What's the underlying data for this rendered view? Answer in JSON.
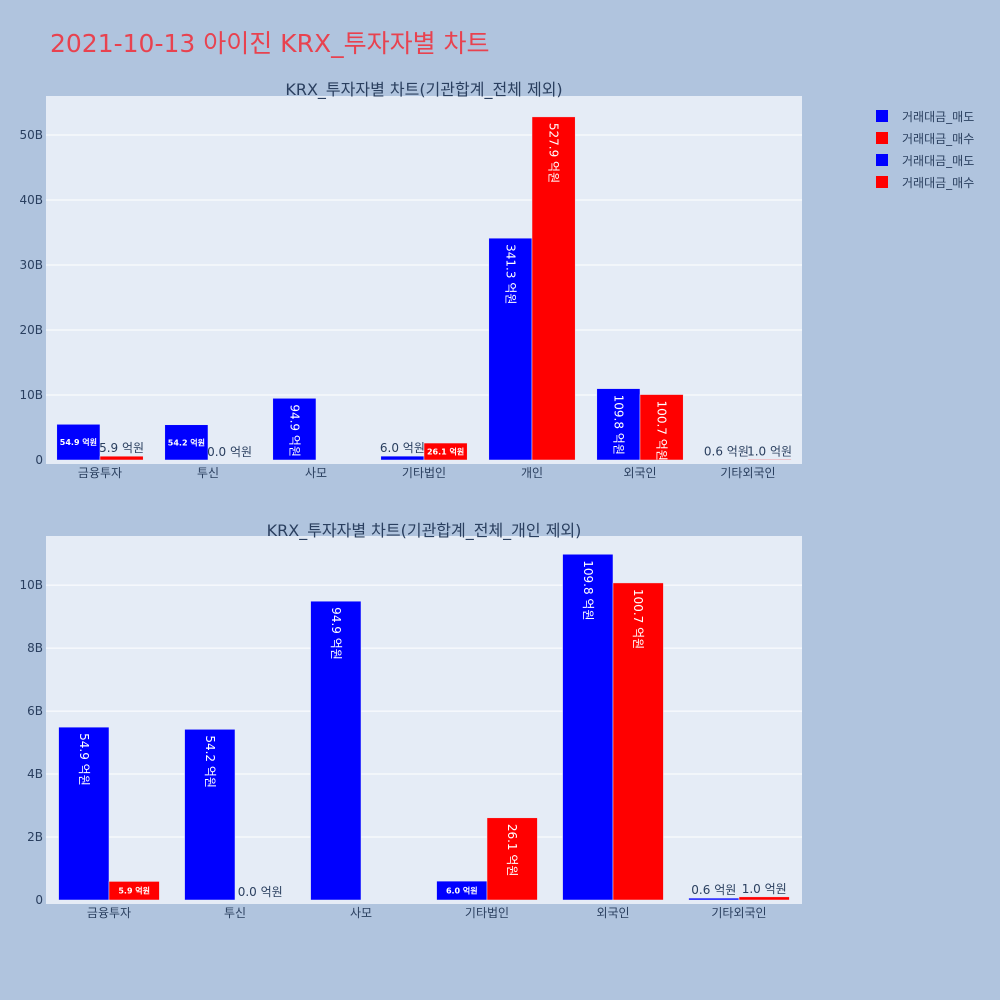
{
  "page_title": "2021-10-13 아이진 KRX_투자자별 차트",
  "legend": [
    {
      "label": "거래대금_매도",
      "color": "#0000ff"
    },
    {
      "label": "거래대금_매수",
      "color": "#ff0000"
    },
    {
      "label": "거래대금_매도",
      "color": "#0000ff"
    },
    {
      "label": "거래대금_매수",
      "color": "#ff0000"
    }
  ],
  "chart_data": [
    {
      "type": "bar",
      "title": "KRX_투자자별 차트(기관합계_전체 제외)",
      "categories": [
        "금융투자",
        "투신",
        "사모",
        "기타법인",
        "개인",
        "외국인",
        "기타외국인"
      ],
      "series": [
        {
          "name": "거래대금_매도",
          "color": "#0000ff",
          "values": [
            5.49,
            5.42,
            9.49,
            0.6,
            34.13,
            10.98,
            0.06
          ],
          "labels": [
            "54.9 억원",
            "54.2 억원",
            "94.9 억원",
            "6.0 억원",
            "341.3 억원",
            "109.8 억원",
            "0.6 억원"
          ]
        },
        {
          "name": "거래대금_매수",
          "color": "#ff0000",
          "values": [
            0.59,
            0.0,
            null,
            2.61,
            52.79,
            10.07,
            0.1
          ],
          "labels": [
            "5.9 억원",
            "0.0 억원",
            "",
            "26.1 억원",
            "527.9 억원",
            "100.7 억원",
            "1.0 억원"
          ]
        }
      ],
      "ylim": [
        0,
        56
      ],
      "yticks": [
        0,
        10,
        20,
        30,
        40,
        50
      ],
      "ytick_labels": [
        "0",
        "10B",
        "20B",
        "30B",
        "40B",
        "50B"
      ],
      "grid": true
    },
    {
      "type": "bar",
      "title": "KRX_투자자별 차트(기관합계_전체_개인 제외)",
      "categories": [
        "금융투자",
        "투신",
        "사모",
        "기타법인",
        "외국인",
        "기타외국인"
      ],
      "series": [
        {
          "name": "거래대금_매도",
          "color": "#0000ff",
          "values": [
            5.49,
            5.42,
            9.49,
            0.6,
            10.98,
            0.06
          ],
          "labels": [
            "54.9 억원",
            "54.2 억원",
            "94.9 억원",
            "6.0 억원",
            "109.8 억원",
            "0.6 억원"
          ]
        },
        {
          "name": "거래대금_매수",
          "color": "#ff0000",
          "values": [
            0.59,
            0.0,
            null,
            2.61,
            10.07,
            0.1
          ],
          "labels": [
            "5.9 억원",
            "0.0 억원",
            "",
            "26.1 억원",
            "100.7 억원",
            "1.0 억원"
          ]
        }
      ],
      "ylim": [
        0,
        11.56
      ],
      "yticks": [
        0,
        2,
        4,
        6,
        8,
        10
      ],
      "ytick_labels": [
        "0",
        "2B",
        "4B",
        "6B",
        "8B",
        "10B"
      ],
      "grid": true
    }
  ]
}
